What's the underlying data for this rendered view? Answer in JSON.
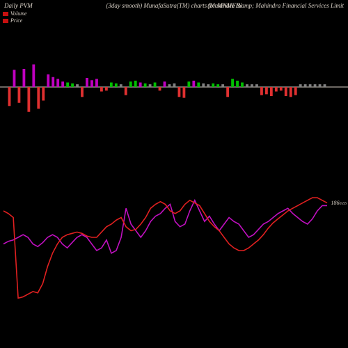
{
  "background_color": "#000000",
  "text_color": "#d8d0c6",
  "header": {
    "left": "Daily PVM",
    "center_prefix": "(3day smooth) MunafaSutra(TM) charts for ",
    "center_symbol": "MNMFIN",
    "right": "(Mahindra &amp; Mahindra Financial Services Limit"
  },
  "legend": {
    "volume": {
      "label": "Volume",
      "color": "#c71010"
    },
    "price": {
      "label": "Price",
      "color": "#c71010"
    }
  },
  "volume_chart": {
    "axis_color": "#d8d0c6",
    "colors": {
      "up": "#00c000",
      "down": "#e03030",
      "flat": "#c000c0",
      "none": "#808080"
    },
    "bars": [
      {
        "v": 42,
        "c": "down",
        "pos": "dn"
      },
      {
        "v": 38,
        "c": "flat",
        "pos": "up"
      },
      {
        "v": 35,
        "c": "down",
        "pos": "dn"
      },
      {
        "v": 40,
        "c": "flat",
        "pos": "up"
      },
      {
        "v": 55,
        "c": "down",
        "pos": "dn"
      },
      {
        "v": 50,
        "c": "flat",
        "pos": "up"
      },
      {
        "v": 48,
        "c": "down",
        "pos": "dn"
      },
      {
        "v": 30,
        "c": "down",
        "pos": "dn"
      },
      {
        "v": 28,
        "c": "flat",
        "pos": "up"
      },
      {
        "v": 22,
        "c": "flat",
        "pos": "up"
      },
      {
        "v": 18,
        "c": "flat",
        "pos": "up"
      },
      {
        "v": 12,
        "c": "flat",
        "pos": "up"
      },
      {
        "v": 10,
        "c": "up",
        "pos": "up"
      },
      {
        "v": 8,
        "c": "up",
        "pos": "up"
      },
      {
        "v": 6,
        "c": "none",
        "pos": "up"
      },
      {
        "v": 22,
        "c": "down",
        "pos": "dn"
      },
      {
        "v": 20,
        "c": "flat",
        "pos": "up"
      },
      {
        "v": 15,
        "c": "flat",
        "pos": "up"
      },
      {
        "v": 18,
        "c": "flat",
        "pos": "up"
      },
      {
        "v": 10,
        "c": "down",
        "pos": "dn"
      },
      {
        "v": 8,
        "c": "down",
        "pos": "dn"
      },
      {
        "v": 10,
        "c": "up",
        "pos": "up"
      },
      {
        "v": 8,
        "c": "up",
        "pos": "up"
      },
      {
        "v": 6,
        "c": "none",
        "pos": "up"
      },
      {
        "v": 18,
        "c": "down",
        "pos": "dn"
      },
      {
        "v": 12,
        "c": "up",
        "pos": "up"
      },
      {
        "v": 14,
        "c": "up",
        "pos": "up"
      },
      {
        "v": 10,
        "c": "flat",
        "pos": "up"
      },
      {
        "v": 8,
        "c": "up",
        "pos": "up"
      },
      {
        "v": 6,
        "c": "none",
        "pos": "up"
      },
      {
        "v": 10,
        "c": "up",
        "pos": "up"
      },
      {
        "v": 8,
        "c": "down",
        "pos": "dn"
      },
      {
        "v": 12,
        "c": "flat",
        "pos": "up"
      },
      {
        "v": 6,
        "c": "none",
        "pos": "up"
      },
      {
        "v": 8,
        "c": "none",
        "pos": "up"
      },
      {
        "v": 22,
        "c": "down",
        "pos": "dn"
      },
      {
        "v": 24,
        "c": "down",
        "pos": "dn"
      },
      {
        "v": 12,
        "c": "up",
        "pos": "up"
      },
      {
        "v": 14,
        "c": "flat",
        "pos": "up"
      },
      {
        "v": 10,
        "c": "up",
        "pos": "up"
      },
      {
        "v": 8,
        "c": "none",
        "pos": "up"
      },
      {
        "v": 6,
        "c": "none",
        "pos": "up"
      },
      {
        "v": 8,
        "c": "up",
        "pos": "up"
      },
      {
        "v": 6,
        "c": "up",
        "pos": "up"
      },
      {
        "v": 6,
        "c": "none",
        "pos": "up"
      },
      {
        "v": 22,
        "c": "down",
        "pos": "dn"
      },
      {
        "v": 18,
        "c": "up",
        "pos": "up"
      },
      {
        "v": 14,
        "c": "up",
        "pos": "up"
      },
      {
        "v": 10,
        "c": "up",
        "pos": "up"
      },
      {
        "v": 6,
        "c": "none",
        "pos": "up"
      },
      {
        "v": 6,
        "c": "none",
        "pos": "up"
      },
      {
        "v": 6,
        "c": "none",
        "pos": "up"
      },
      {
        "v": 18,
        "c": "down",
        "pos": "dn"
      },
      {
        "v": 16,
        "c": "down",
        "pos": "dn"
      },
      {
        "v": 20,
        "c": "down",
        "pos": "dn"
      },
      {
        "v": 10,
        "c": "down",
        "pos": "dn"
      },
      {
        "v": 8,
        "c": "down",
        "pos": "dn"
      },
      {
        "v": 20,
        "c": "down",
        "pos": "dn"
      },
      {
        "v": 22,
        "c": "down",
        "pos": "dn"
      },
      {
        "v": 18,
        "c": "down",
        "pos": "dn"
      },
      {
        "v": 6,
        "c": "none",
        "pos": "up"
      },
      {
        "v": 6,
        "c": "none",
        "pos": "up"
      },
      {
        "v": 6,
        "c": "none",
        "pos": "up"
      },
      {
        "v": 6,
        "c": "none",
        "pos": "up"
      },
      {
        "v": 6,
        "c": "none",
        "pos": "up"
      },
      {
        "v": 6,
        "c": "none",
        "pos": "up"
      }
    ]
  },
  "line_chart": {
    "colors": {
      "price": "#e02020",
      "other": "#c010c0"
    },
    "line_width": 1.6,
    "price_label_text": "186",
    "price_label_sub": "0.65",
    "price_series": [
      80,
      78,
      75,
      14,
      15,
      17,
      19,
      18,
      25,
      38,
      48,
      55,
      60,
      62,
      63,
      64,
      63,
      61,
      60,
      60,
      64,
      68,
      70,
      73,
      75,
      68,
      65,
      66,
      70,
      75,
      82,
      85,
      87,
      85,
      80,
      78,
      80,
      85,
      88,
      86,
      84,
      78,
      72,
      68,
      65,
      60,
      55,
      52,
      50,
      50,
      52,
      55,
      58,
      62,
      67,
      71,
      74,
      77,
      80,
      82,
      84,
      86,
      88,
      90,
      90,
      88,
      86
    ],
    "other_series": [
      55,
      57,
      58,
      60,
      62,
      60,
      55,
      53,
      56,
      60,
      62,
      60,
      55,
      52,
      56,
      60,
      62,
      60,
      55,
      50,
      52,
      58,
      48,
      50,
      60,
      82,
      70,
      65,
      60,
      65,
      72,
      76,
      78,
      82,
      85,
      72,
      68,
      70,
      80,
      88,
      80,
      72,
      76,
      70,
      65,
      70,
      75,
      72,
      70,
      65,
      60,
      62,
      66,
      70,
      72,
      75,
      78,
      80,
      82,
      78,
      75,
      72,
      70,
      74,
      80,
      84,
      84
    ]
  }
}
